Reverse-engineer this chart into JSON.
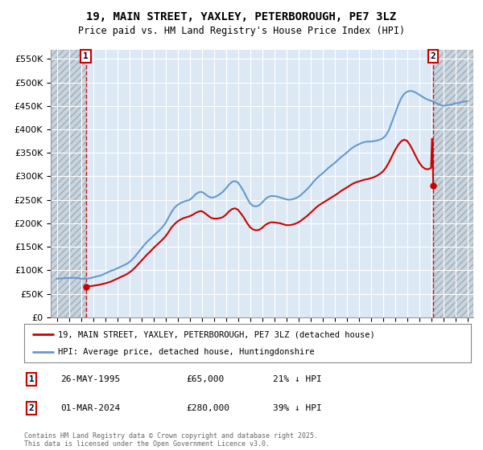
{
  "title": "19, MAIN STREET, YAXLEY, PETERBOROUGH, PE7 3LZ",
  "subtitle": "Price paid vs. HM Land Registry's House Price Index (HPI)",
  "legend_line1": "19, MAIN STREET, YAXLEY, PETERBOROUGH, PE7 3LZ (detached house)",
  "legend_line2": "HPI: Average price, detached house, Huntingdonshire",
  "annotation1_label": "1",
  "annotation1_date": "26-MAY-1995",
  "annotation1_price": "£65,000",
  "annotation1_hpi": "21% ↓ HPI",
  "annotation2_label": "2",
  "annotation2_date": "01-MAR-2024",
  "annotation2_price": "£280,000",
  "annotation2_hpi": "39% ↓ HPI",
  "footer": "Contains HM Land Registry data © Crown copyright and database right 2025.\nThis data is licensed under the Open Government Licence v3.0.",
  "background_color": "#ffffff",
  "plot_bg_color": "#dce9f5",
  "hatch_bg_color": "#c8d8e8",
  "grid_color": "#ffffff",
  "red_line_color": "#cc0000",
  "blue_line_color": "#6699cc",
  "dashed_line_color": "#cc0000",
  "ylim": [
    0,
    570000
  ],
  "xlim_start": 1992.5,
  "xlim_end": 2027.5,
  "point1_x": 1995.4,
  "point1_y": 65000,
  "point2_x": 2024.17,
  "point2_y": 280000,
  "hatch_end_x": 1995.4,
  "hatch_start2_x": 2024.17,
  "hpi_data": [
    [
      1993.0,
      82000
    ],
    [
      1993.25,
      82500
    ],
    [
      1993.5,
      83000
    ],
    [
      1993.75,
      83200
    ],
    [
      1994.0,
      83500
    ],
    [
      1994.25,
      83800
    ],
    [
      1994.5,
      84000
    ],
    [
      1994.75,
      83500
    ],
    [
      1995.0,
      82000
    ],
    [
      1995.25,
      82000
    ],
    [
      1995.4,
      82500
    ],
    [
      1995.5,
      82500
    ],
    [
      1995.75,
      83000
    ],
    [
      1996.0,
      85000
    ],
    [
      1996.25,
      86500
    ],
    [
      1996.5,
      88000
    ],
    [
      1996.75,
      90000
    ],
    [
      1997.0,
      93000
    ],
    [
      1997.25,
      96000
    ],
    [
      1997.5,
      99000
    ],
    [
      1997.75,
      101000
    ],
    [
      1998.0,
      104000
    ],
    [
      1998.25,
      107000
    ],
    [
      1998.5,
      110000
    ],
    [
      1998.75,
      113000
    ],
    [
      1999.0,
      117000
    ],
    [
      1999.25,
      123000
    ],
    [
      1999.5,
      130000
    ],
    [
      1999.75,
      138000
    ],
    [
      2000.0,
      146000
    ],
    [
      2000.25,
      154000
    ],
    [
      2000.5,
      161000
    ],
    [
      2000.75,
      167000
    ],
    [
      2001.0,
      173000
    ],
    [
      2001.25,
      179000
    ],
    [
      2001.5,
      185000
    ],
    [
      2001.75,
      192000
    ],
    [
      2002.0,
      200000
    ],
    [
      2002.25,
      212000
    ],
    [
      2002.5,
      224000
    ],
    [
      2002.75,
      233000
    ],
    [
      2003.0,
      239000
    ],
    [
      2003.25,
      243000
    ],
    [
      2003.5,
      246000
    ],
    [
      2003.75,
      248000
    ],
    [
      2004.0,
      250000
    ],
    [
      2004.25,
      255000
    ],
    [
      2004.5,
      262000
    ],
    [
      2004.75,
      266000
    ],
    [
      2005.0,
      267000
    ],
    [
      2005.25,
      263000
    ],
    [
      2005.5,
      258000
    ],
    [
      2005.75,
      255000
    ],
    [
      2006.0,
      255000
    ],
    [
      2006.25,
      258000
    ],
    [
      2006.5,
      262000
    ],
    [
      2006.75,
      267000
    ],
    [
      2007.0,
      274000
    ],
    [
      2007.25,
      282000
    ],
    [
      2007.5,
      288000
    ],
    [
      2007.75,
      290000
    ],
    [
      2008.0,
      287000
    ],
    [
      2008.25,
      278000
    ],
    [
      2008.5,
      267000
    ],
    [
      2008.75,
      254000
    ],
    [
      2009.0,
      243000
    ],
    [
      2009.25,
      237000
    ],
    [
      2009.5,
      236000
    ],
    [
      2009.75,
      238000
    ],
    [
      2010.0,
      244000
    ],
    [
      2010.25,
      251000
    ],
    [
      2010.5,
      256000
    ],
    [
      2010.75,
      258000
    ],
    [
      2011.0,
      258000
    ],
    [
      2011.25,
      257000
    ],
    [
      2011.5,
      255000
    ],
    [
      2011.75,
      253000
    ],
    [
      2012.0,
      251000
    ],
    [
      2012.25,
      250000
    ],
    [
      2012.5,
      251000
    ],
    [
      2012.75,
      253000
    ],
    [
      2013.0,
      256000
    ],
    [
      2013.25,
      261000
    ],
    [
      2013.5,
      267000
    ],
    [
      2013.75,
      273000
    ],
    [
      2014.0,
      280000
    ],
    [
      2014.25,
      288000
    ],
    [
      2014.5,
      295000
    ],
    [
      2014.75,
      301000
    ],
    [
      2015.0,
      306000
    ],
    [
      2015.25,
      312000
    ],
    [
      2015.5,
      318000
    ],
    [
      2015.75,
      323000
    ],
    [
      2016.0,
      328000
    ],
    [
      2016.25,
      334000
    ],
    [
      2016.5,
      340000
    ],
    [
      2016.75,
      345000
    ],
    [
      2017.0,
      350000
    ],
    [
      2017.25,
      356000
    ],
    [
      2017.5,
      361000
    ],
    [
      2017.75,
      365000
    ],
    [
      2018.0,
      368000
    ],
    [
      2018.25,
      371000
    ],
    [
      2018.5,
      373000
    ],
    [
      2018.75,
      374000
    ],
    [
      2019.0,
      374000
    ],
    [
      2019.25,
      375000
    ],
    [
      2019.5,
      376000
    ],
    [
      2019.75,
      378000
    ],
    [
      2020.0,
      381000
    ],
    [
      2020.25,
      387000
    ],
    [
      2020.5,
      398000
    ],
    [
      2020.75,
      415000
    ],
    [
      2021.0,
      432000
    ],
    [
      2021.25,
      450000
    ],
    [
      2021.5,
      465000
    ],
    [
      2021.75,
      475000
    ],
    [
      2022.0,
      480000
    ],
    [
      2022.25,
      482000
    ],
    [
      2022.5,
      481000
    ],
    [
      2022.75,
      478000
    ],
    [
      2023.0,
      474000
    ],
    [
      2023.25,
      470000
    ],
    [
      2023.5,
      466000
    ],
    [
      2023.75,
      463000
    ],
    [
      2024.0,
      461000
    ],
    [
      2024.17,
      459000
    ],
    [
      2024.5,
      455000
    ],
    [
      2024.75,
      452000
    ],
    [
      2025.0,
      450000
    ],
    [
      2025.5,
      452000
    ],
    [
      2026.0,
      455000
    ],
    [
      2026.5,
      458000
    ],
    [
      2027.0,
      460000
    ]
  ],
  "red_data": [
    [
      1995.4,
      65000
    ],
    [
      1995.5,
      65500
    ],
    [
      1995.75,
      66000
    ],
    [
      1996.0,
      67000
    ],
    [
      1996.25,
      68000
    ],
    [
      1996.5,
      69000
    ],
    [
      1996.75,
      70500
    ],
    [
      1997.0,
      72000
    ],
    [
      1997.25,
      74000
    ],
    [
      1997.5,
      76000
    ],
    [
      1997.75,
      79000
    ],
    [
      1998.0,
      82000
    ],
    [
      1998.25,
      85000
    ],
    [
      1998.5,
      88000
    ],
    [
      1998.75,
      91000
    ],
    [
      1999.0,
      95000
    ],
    [
      1999.25,
      100000
    ],
    [
      1999.5,
      106000
    ],
    [
      1999.75,
      113000
    ],
    [
      2000.0,
      120000
    ],
    [
      2000.25,
      127000
    ],
    [
      2000.5,
      134000
    ],
    [
      2000.75,
      140000
    ],
    [
      2001.0,
      147000
    ],
    [
      2001.25,
      153000
    ],
    [
      2001.5,
      159000
    ],
    [
      2001.75,
      165000
    ],
    [
      2002.0,
      172000
    ],
    [
      2002.25,
      181000
    ],
    [
      2002.5,
      191000
    ],
    [
      2002.75,
      198000
    ],
    [
      2003.0,
      204000
    ],
    [
      2003.25,
      208000
    ],
    [
      2003.5,
      211000
    ],
    [
      2003.75,
      213000
    ],
    [
      2004.0,
      215000
    ],
    [
      2004.25,
      218000
    ],
    [
      2004.5,
      222000
    ],
    [
      2004.75,
      225000
    ],
    [
      2005.0,
      226000
    ],
    [
      2005.25,
      222000
    ],
    [
      2005.5,
      217000
    ],
    [
      2005.75,
      212000
    ],
    [
      2006.0,
      210000
    ],
    [
      2006.25,
      210000
    ],
    [
      2006.5,
      211000
    ],
    [
      2006.75,
      213000
    ],
    [
      2007.0,
      218000
    ],
    [
      2007.25,
      225000
    ],
    [
      2007.5,
      230000
    ],
    [
      2007.75,
      232000
    ],
    [
      2008.0,
      229000
    ],
    [
      2008.25,
      221000
    ],
    [
      2008.5,
      212000
    ],
    [
      2008.75,
      201000
    ],
    [
      2009.0,
      192000
    ],
    [
      2009.25,
      187000
    ],
    [
      2009.5,
      185000
    ],
    [
      2009.75,
      186000
    ],
    [
      2010.0,
      190000
    ],
    [
      2010.25,
      196000
    ],
    [
      2010.5,
      200000
    ],
    [
      2010.75,
      202000
    ],
    [
      2011.0,
      202000
    ],
    [
      2011.25,
      201000
    ],
    [
      2011.5,
      200000
    ],
    [
      2011.75,
      198000
    ],
    [
      2012.0,
      196000
    ],
    [
      2012.25,
      196000
    ],
    [
      2012.5,
      197000
    ],
    [
      2012.75,
      199000
    ],
    [
      2013.0,
      202000
    ],
    [
      2013.25,
      206000
    ],
    [
      2013.5,
      211000
    ],
    [
      2013.75,
      216000
    ],
    [
      2014.0,
      222000
    ],
    [
      2014.25,
      228000
    ],
    [
      2014.5,
      234000
    ],
    [
      2014.75,
      239000
    ],
    [
      2015.0,
      243000
    ],
    [
      2015.25,
      247000
    ],
    [
      2015.5,
      251000
    ],
    [
      2015.75,
      255000
    ],
    [
      2016.0,
      259000
    ],
    [
      2016.25,
      263000
    ],
    [
      2016.5,
      268000
    ],
    [
      2016.75,
      272000
    ],
    [
      2017.0,
      276000
    ],
    [
      2017.25,
      280000
    ],
    [
      2017.5,
      284000
    ],
    [
      2017.75,
      287000
    ],
    [
      2018.0,
      289000
    ],
    [
      2018.25,
      291000
    ],
    [
      2018.5,
      293000
    ],
    [
      2018.75,
      294000
    ],
    [
      2019.0,
      296000
    ],
    [
      2019.25,
      298000
    ],
    [
      2019.5,
      301000
    ],
    [
      2019.75,
      305000
    ],
    [
      2020.0,
      310000
    ],
    [
      2020.25,
      318000
    ],
    [
      2020.5,
      329000
    ],
    [
      2020.75,
      342000
    ],
    [
      2021.0,
      355000
    ],
    [
      2021.25,
      366000
    ],
    [
      2021.5,
      374000
    ],
    [
      2021.75,
      378000
    ],
    [
      2022.0,
      376000
    ],
    [
      2022.25,
      367000
    ],
    [
      2022.5,
      355000
    ],
    [
      2022.75,
      342000
    ],
    [
      2023.0,
      330000
    ],
    [
      2023.25,
      321000
    ],
    [
      2023.5,
      316000
    ],
    [
      2023.75,
      315000
    ],
    [
      2024.0,
      318000
    ],
    [
      2024.08,
      380000
    ],
    [
      2024.12,
      375000
    ],
    [
      2024.17,
      280000
    ]
  ]
}
